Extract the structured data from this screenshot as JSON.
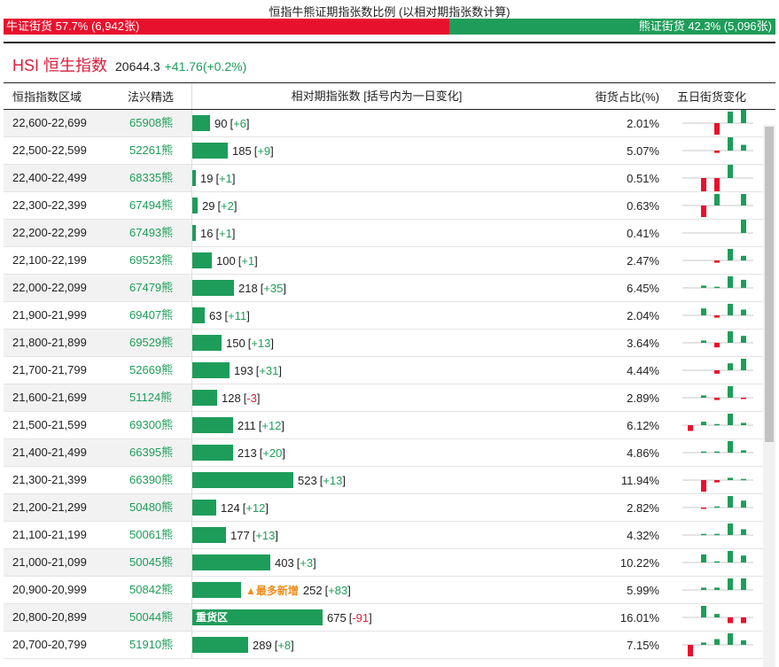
{
  "header": {
    "title": "恒指牛熊证期指张数比例 (以相对期指张数计算)",
    "bull_label": "牛证街货 57.7% (6,942张)",
    "bear_label": "熊证街货 42.3% (5,096张)",
    "bull_ratio": 0.577,
    "colors": {
      "bull": "#e8112d",
      "bear": "#1e9d5a"
    }
  },
  "index": {
    "name": "HSI 恒生指数",
    "value": "20644.3",
    "change": "+41.76(+0.2%)"
  },
  "table": {
    "headers": {
      "range": "恒指指数区域",
      "code": "法兴精选",
      "bar": "相对期指张数 [括号内为一日变化]",
      "pct": "街货占比(%)",
      "trend": "五日街货变化"
    },
    "bar_max": 700,
    "rows": [
      {
        "range": "22,600-22,699",
        "code": "65908熊",
        "count": 90,
        "count_text": "90",
        "chg_text": "+6",
        "chg_sign": "pos",
        "pct": "2.01%",
        "tag": "",
        "inbar": "",
        "trend": [
          0,
          0,
          -1,
          1,
          1.2
        ]
      },
      {
        "range": "22,500-22,599",
        "code": "52261熊",
        "count": 185,
        "count_text": "185",
        "chg_text": "+9",
        "chg_sign": "pos",
        "pct": "5.07%",
        "tag": "",
        "inbar": "",
        "trend": [
          0,
          0,
          -0.2,
          1.4,
          0.5
        ]
      },
      {
        "range": "22,400-22,499",
        "code": "68335熊",
        "count": 19,
        "count_text": "19",
        "chg_text": "+1",
        "chg_sign": "pos",
        "pct": "0.51%",
        "tag": "",
        "inbar": "",
        "trend": [
          0,
          -1.3,
          -1.3,
          1.3,
          0
        ]
      },
      {
        "range": "22,300-22,399",
        "code": "67494熊",
        "count": 29,
        "count_text": "29",
        "chg_text": "+2",
        "chg_sign": "pos",
        "pct": "0.63%",
        "tag": "",
        "inbar": "",
        "trend": [
          0,
          -1,
          1,
          0,
          1
        ]
      },
      {
        "range": "22,200-22,299",
        "code": "67493熊",
        "count": 16,
        "count_text": "16",
        "chg_text": "+1",
        "chg_sign": "pos",
        "pct": "0.41%",
        "tag": "",
        "inbar": "",
        "trend": [
          0,
          0,
          0,
          0,
          1.3
        ]
      },
      {
        "range": "22,100-22,199",
        "code": "69523熊",
        "count": 100,
        "count_text": "100",
        "chg_text": "+1",
        "chg_sign": "pos",
        "pct": "2.47%",
        "tag": "",
        "inbar": "",
        "trend": [
          0,
          0,
          -0.2,
          1,
          0.4
        ]
      },
      {
        "range": "22,000-22,099",
        "code": "67479熊",
        "count": 218,
        "count_text": "218",
        "chg_text": "+35",
        "chg_sign": "pos",
        "pct": "6.45%",
        "tag": "",
        "inbar": "",
        "trend": [
          0,
          0.2,
          0.1,
          1,
          0.7
        ]
      },
      {
        "range": "21,900-21,999",
        "code": "69407熊",
        "count": 63,
        "count_text": "63",
        "chg_text": "+11",
        "chg_sign": "pos",
        "pct": "2.04%",
        "tag": "",
        "inbar": "",
        "trend": [
          0,
          0.6,
          -0.2,
          1,
          0.5
        ]
      },
      {
        "range": "21,800-21,899",
        "code": "69529熊",
        "count": 150,
        "count_text": "150",
        "chg_text": "+13",
        "chg_sign": "pos",
        "pct": "3.64%",
        "tag": "",
        "inbar": "",
        "trend": [
          0,
          0.2,
          -0.4,
          1,
          0.6
        ]
      },
      {
        "range": "21,700-21,799",
        "code": "52669熊",
        "count": 193,
        "count_text": "193",
        "chg_text": "+31",
        "chg_sign": "pos",
        "pct": "4.44%",
        "tag": "",
        "inbar": "",
        "trend": [
          0,
          0,
          -0.3,
          0.6,
          1
        ]
      },
      {
        "range": "21,600-21,699",
        "code": "51124熊",
        "count": 128,
        "count_text": "128",
        "chg_text": "-3",
        "chg_sign": "neg",
        "pct": "2.89%",
        "tag": "",
        "inbar": "",
        "trend": [
          0,
          0.2,
          -0.2,
          1,
          -0.1
        ]
      },
      {
        "range": "21,500-21,599",
        "code": "69300熊",
        "count": 211,
        "count_text": "211",
        "chg_text": "+12",
        "chg_sign": "pos",
        "pct": "6.12%",
        "tag": "",
        "inbar": "",
        "trend": [
          -0.5,
          0.3,
          0.1,
          1,
          0.2
        ]
      },
      {
        "range": "21,400-21,499",
        "code": "66395熊",
        "count": 213,
        "count_text": "213",
        "chg_text": "+20",
        "chg_sign": "pos",
        "pct": "4.86%",
        "tag": "",
        "inbar": "",
        "trend": [
          0,
          0.1,
          0.1,
          1,
          0.2
        ]
      },
      {
        "range": "21,300-21,399",
        "code": "66390熊",
        "count": 523,
        "count_text": "523",
        "chg_text": "+13",
        "chg_sign": "pos",
        "pct": "11.94%",
        "tag": "",
        "inbar": "",
        "trend": [
          0,
          -1,
          -0.2,
          0.2,
          0.1
        ]
      },
      {
        "range": "21,200-21,299",
        "code": "50480熊",
        "count": 124,
        "count_text": "124",
        "chg_text": "+12",
        "chg_sign": "pos",
        "pct": "2.82%",
        "tag": "",
        "inbar": "",
        "trend": [
          0,
          -0.1,
          0.1,
          1,
          0.6
        ]
      },
      {
        "range": "21,100-21,199",
        "code": "50061熊",
        "count": 177,
        "count_text": "177",
        "chg_text": "+13",
        "chg_sign": "pos",
        "pct": "4.32%",
        "tag": "",
        "inbar": "",
        "trend": [
          0,
          0.1,
          0.1,
          1,
          0.5
        ]
      },
      {
        "range": "21,000-21,099",
        "code": "50045熊",
        "count": 403,
        "count_text": "403",
        "chg_text": "+3",
        "chg_sign": "pos",
        "pct": "10.22%",
        "tag": "",
        "inbar": "",
        "trend": [
          0,
          0.7,
          0.1,
          1,
          0.6
        ]
      },
      {
        "range": "20,900-20,999",
        "code": "50842熊",
        "count": 252,
        "count_text": "252",
        "chg_text": "+83",
        "chg_sign": "pos",
        "pct": "5.99%",
        "tag": "▲最多新增",
        "inbar": "",
        "trend": [
          0,
          0.2,
          0.2,
          1,
          1
        ]
      },
      {
        "range": "20,800-20,899",
        "code": "50044熊",
        "count": 675,
        "count_text": "675",
        "chg_text": "-91",
        "chg_sign": "neg",
        "pct": "16.01%",
        "tag": "",
        "inbar": "重货区",
        "trend": [
          0,
          1,
          0.3,
          -0.5,
          -0.5
        ]
      },
      {
        "range": "20,700-20,799",
        "code": "51910熊",
        "count": 289,
        "count_text": "289",
        "chg_text": "+8",
        "chg_sign": "pos",
        "pct": "7.15%",
        "tag": "",
        "inbar": "",
        "trend": [
          -1,
          0.2,
          0.5,
          1,
          0.4
        ]
      }
    ]
  }
}
